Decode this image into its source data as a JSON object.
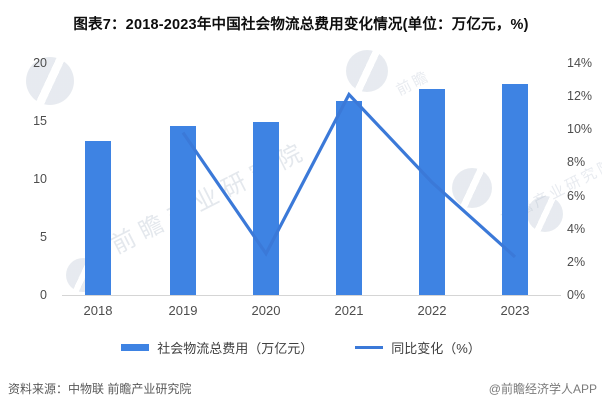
{
  "title": "图表7：2018-2023年中国社会物流总费用变化情况(单位：万亿元，%)",
  "colors": {
    "bar": "#3e83e3",
    "line": "#3b79d8",
    "axis_line": "#d5d5d5",
    "tick_text": "#4d4d4d",
    "legend_text": "#3f3f3f",
    "source_text": "#595959",
    "credit_text": "#7a7a7a"
  },
  "chart_data": {
    "type": "bar+line combo",
    "categories": [
      "2018",
      "2019",
      "2020",
      "2021",
      "2022",
      "2023"
    ],
    "series": [
      {
        "name": "社会物流总费用（万亿元）",
        "type": "bar",
        "axis": "left",
        "x": [
          "2018",
          "2019",
          "2020",
          "2021",
          "2022",
          "2023"
        ],
        "values": [
          13.3,
          14.6,
          14.9,
          16.7,
          17.8,
          18.2
        ]
      },
      {
        "name": "同比变化（%）",
        "type": "line",
        "axis": "right",
        "x": [
          "2019",
          "2020",
          "2021",
          "2022",
          "2023"
        ],
        "values": [
          9.8,
          2.5,
          12.1,
          6.8,
          2.3
        ]
      }
    ],
    "left_axis": {
      "ticks": [
        "0",
        "5",
        "10",
        "15",
        "20"
      ],
      "min": 0,
      "max": 20
    },
    "right_axis": {
      "ticks": [
        "0%",
        "2%",
        "4%",
        "6%",
        "8%",
        "10%",
        "12%",
        "14%"
      ],
      "min": 0,
      "max": 14
    },
    "grid": false,
    "legend_position": "bottom",
    "title": "图表7：2018-2023年中国社会物流总费用变化情况(单位：万亿元，%)"
  },
  "legend": {
    "items": [
      {
        "label": "社会物流总费用（万亿元）",
        "marker": "square"
      },
      {
        "label": "同比变化（%）",
        "marker": "line"
      }
    ]
  },
  "footer": {
    "source": "资料来源：中物联 前瞻产业研究院",
    "credit": "@前瞻经济学人APP"
  },
  "watermark": {
    "text": "前瞻产业研究院",
    "short_text": "前瞻"
  }
}
